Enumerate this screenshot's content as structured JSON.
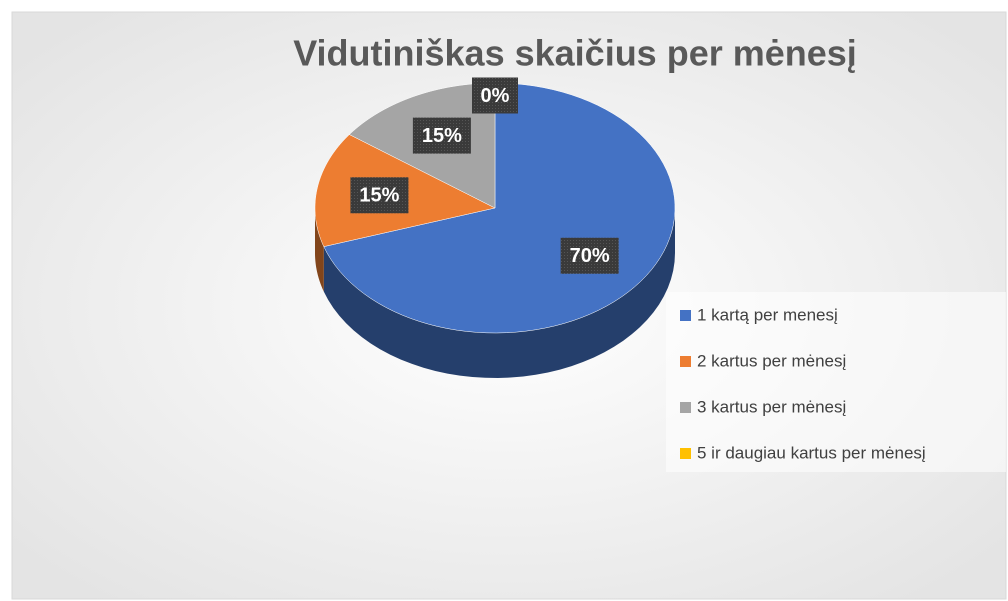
{
  "chart_data": {
    "type": "pie",
    "title": "Vidutiniškas skaičius per mėnesį",
    "categories": [
      "1 kartą per menesį",
      "2 kartus per mėnesį",
      "3 kartus per mėnesį",
      "5 ir daugiau kartus per mėnesį"
    ],
    "values": [
      70,
      15,
      15,
      0
    ],
    "value_labels": [
      "70%",
      "15%",
      "15%",
      "0%"
    ],
    "colors": [
      "#4472c4",
      "#ed7d31",
      "#a5a5a5",
      "#ffc000"
    ],
    "legend": "right"
  }
}
